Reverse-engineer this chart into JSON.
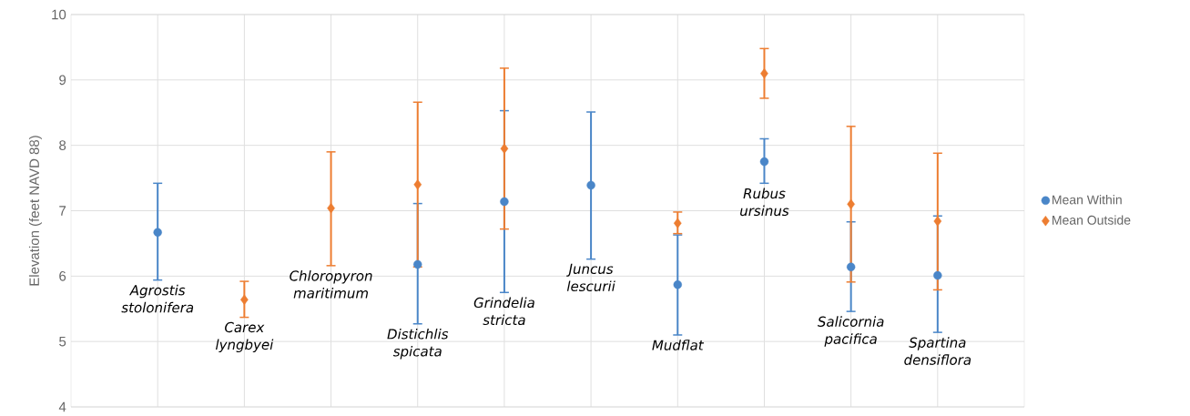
{
  "chart_data": {
    "type": "scatter",
    "ylabel": "Elevation (feet NAVD 88)",
    "categories": [
      "Agrostis stolonifera",
      "Carex lyngbyei",
      "Chloropyron maritimum",
      "Distichlis spicata",
      "Grindelia stricta",
      "Juncus lescurii",
      "Mudflat",
      "Rubus ursinus",
      "Salicornia pacifica",
      "Spartina densiflora"
    ],
    "series": [
      {
        "name": "Mean Within",
        "color": "#4a86c8",
        "marker": "circle",
        "values": [
          6.67,
          null,
          null,
          6.18,
          7.14,
          7.39,
          5.87,
          7.75,
          6.14,
          6.01
        ],
        "errors": [
          [
            5.94,
            7.42
          ],
          null,
          null,
          [
            5.27,
            7.11
          ],
          [
            5.75,
            8.53
          ],
          [
            6.26,
            8.51
          ],
          [
            5.1,
            6.63
          ],
          [
            7.42,
            8.1
          ],
          [
            5.46,
            6.83
          ],
          [
            5.14,
            6.92
          ]
        ]
      },
      {
        "name": "Mean Outside",
        "color": "#ed7d31",
        "marker": "diamond",
        "values": [
          null,
          5.64,
          7.04,
          7.4,
          7.95,
          null,
          6.81,
          9.1,
          7.1,
          6.84
        ],
        "errors": [
          null,
          [
            5.37,
            5.92
          ],
          [
            6.16,
            7.9
          ],
          [
            6.14,
            8.66
          ],
          [
            6.72,
            9.18
          ],
          null,
          [
            6.65,
            6.98
          ],
          [
            8.72,
            9.48
          ],
          [
            5.91,
            8.29
          ],
          [
            5.79,
            7.88
          ]
        ]
      }
    ],
    "ylim": [
      4,
      10
    ],
    "yticks": [
      4,
      5,
      6,
      7,
      8,
      9,
      10
    ],
    "grid": true,
    "legend": "right"
  }
}
